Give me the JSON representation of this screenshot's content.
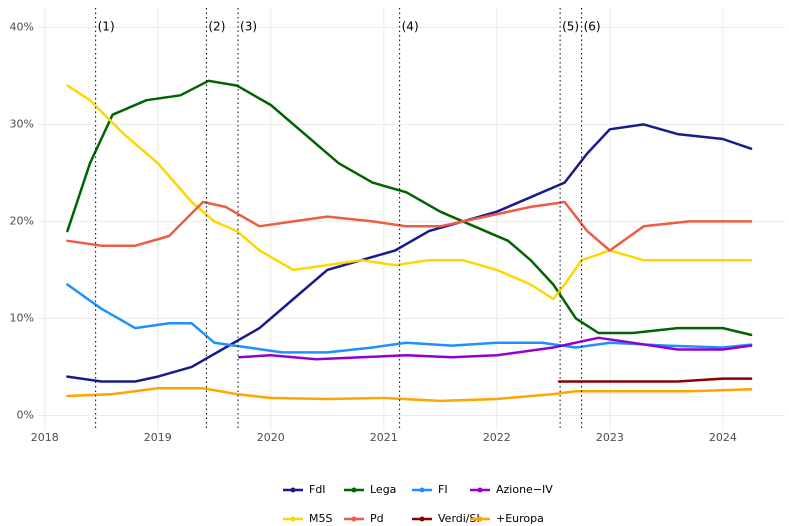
{
  "chart_data": {
    "type": "line",
    "xlim": [
      2017.94,
      2024.55
    ],
    "xticks": [
      2018,
      2019,
      2020,
      2021,
      2022,
      2023,
      2024
    ],
    "ylim": [
      -1.5,
      42
    ],
    "yticks": [
      {
        "value": 0,
        "label": "0%"
      },
      {
        "value": 10,
        "label": "10%"
      },
      {
        "value": 20,
        "label": "20%"
      },
      {
        "value": 30,
        "label": "30%"
      },
      {
        "value": 40,
        "label": "40%"
      }
    ],
    "grid": true,
    "legend": "bottom",
    "annotations": [
      {
        "x": 2018.45,
        "label": "(1)"
      },
      {
        "x": 2019.43,
        "label": "(2)"
      },
      {
        "x": 2019.71,
        "label": "(3)"
      },
      {
        "x": 2021.14,
        "label": "(4)"
      },
      {
        "x": 2022.56,
        "label": "(5)"
      },
      {
        "x": 2022.75,
        "label": "(6)"
      }
    ],
    "series": [
      {
        "name": "FdI",
        "color": "#1a1a8c",
        "x": [
          2018.2,
          2018.5,
          2018.8,
          2019.0,
          2019.3,
          2019.6,
          2019.9,
          2020.2,
          2020.5,
          2020.8,
          2021.1,
          2021.4,
          2021.7,
          2022.0,
          2022.3,
          2022.6,
          2022.8,
          2023.0,
          2023.3,
          2023.6,
          2024.0,
          2024.25
        ],
        "values": [
          4,
          3.5,
          3.5,
          4,
          5,
          7,
          9,
          12,
          15,
          16,
          17,
          19,
          20,
          21,
          22.5,
          24,
          27,
          29.5,
          30,
          29,
          28.5,
          27.5
        ]
      },
      {
        "name": "Lega",
        "color": "#006400",
        "x": [
          2018.2,
          2018.4,
          2018.6,
          2018.9,
          2019.2,
          2019.45,
          2019.7,
          2020.0,
          2020.3,
          2020.6,
          2020.9,
          2021.2,
          2021.5,
          2021.8,
          2022.1,
          2022.3,
          2022.5,
          2022.7,
          2022.9,
          2023.2,
          2023.6,
          2024.0,
          2024.25
        ],
        "values": [
          19,
          26,
          31,
          32.5,
          33,
          34.5,
          34,
          32,
          29,
          26,
          24,
          23,
          21,
          19.5,
          18,
          16,
          13.5,
          10,
          8.5,
          8.5,
          9,
          9,
          8.3
        ]
      },
      {
        "name": "FI",
        "color": "#1e90ff",
        "x": [
          2018.2,
          2018.5,
          2018.8,
          2019.1,
          2019.3,
          2019.5,
          2019.8,
          2020.1,
          2020.5,
          2020.9,
          2021.2,
          2021.6,
          2022.0,
          2022.4,
          2022.7,
          2023.0,
          2023.5,
          2024.0,
          2024.25
        ],
        "values": [
          13.5,
          11,
          9,
          9.5,
          9.5,
          7.5,
          7,
          6.5,
          6.5,
          7,
          7.5,
          7.2,
          7.5,
          7.5,
          7,
          7.5,
          7.2,
          7,
          7.3
        ]
      },
      {
        "name": "Azione−IV",
        "color": "#9400d3",
        "x": [
          2019.72,
          2020.0,
          2020.4,
          2020.8,
          2021.2,
          2021.6,
          2022.0,
          2022.5,
          2022.9,
          2023.2,
          2023.6,
          2024.0,
          2024.25
        ],
        "values": [
          6,
          6.2,
          5.8,
          6,
          6.2,
          6,
          6.2,
          7,
          8,
          7.5,
          6.8,
          6.8,
          7.2
        ]
      },
      {
        "name": "M5S",
        "color": "#ffd700",
        "x": [
          2018.2,
          2018.4,
          2018.7,
          2019.0,
          2019.3,
          2019.5,
          2019.7,
          2019.9,
          2020.2,
          2020.5,
          2020.8,
          2021.1,
          2021.4,
          2021.7,
          2022.0,
          2022.3,
          2022.5,
          2022.6,
          2022.75,
          2023.0,
          2023.3,
          2023.7,
          2024.25
        ],
        "values": [
          34,
          32.5,
          29,
          26,
          22,
          20,
          19,
          17,
          15,
          15.5,
          16,
          15.5,
          16,
          16,
          15,
          13.5,
          12,
          13.5,
          16,
          17,
          16,
          16,
          16
        ]
      },
      {
        "name": "Pd",
        "color": "#ee5c42",
        "x": [
          2018.2,
          2018.5,
          2018.8,
          2019.1,
          2019.4,
          2019.6,
          2019.9,
          2020.2,
          2020.5,
          2020.9,
          2021.2,
          2021.5,
          2021.9,
          2022.3,
          2022.6,
          2022.8,
          2023.0,
          2023.3,
          2023.7,
          2024.25
        ],
        "values": [
          18,
          17.5,
          17.5,
          18.5,
          22,
          21.5,
          19.5,
          20,
          20.5,
          20,
          19.5,
          19.5,
          20.5,
          21.5,
          22,
          19,
          17,
          19.5,
          20,
          20
        ]
      },
      {
        "name": "Verdi/SI",
        "color": "#8b0000",
        "x": [
          2022.55,
          2022.8,
          2023.2,
          2023.6,
          2024.0,
          2024.25
        ],
        "values": [
          3.5,
          3.5,
          3.5,
          3.5,
          3.8,
          3.8
        ]
      },
      {
        "name": "+Europa",
        "color": "#ffa500",
        "x": [
          2018.2,
          2018.6,
          2019.0,
          2019.4,
          2019.7,
          2020.0,
          2020.5,
          2021.0,
          2021.5,
          2022.0,
          2022.5,
          2022.7,
          2023.2,
          2023.7,
          2024.25
        ],
        "values": [
          2,
          2.2,
          2.8,
          2.8,
          2.2,
          1.8,
          1.7,
          1.8,
          1.5,
          1.7,
          2.2,
          2.5,
          2.5,
          2.5,
          2.7
        ]
      }
    ]
  }
}
